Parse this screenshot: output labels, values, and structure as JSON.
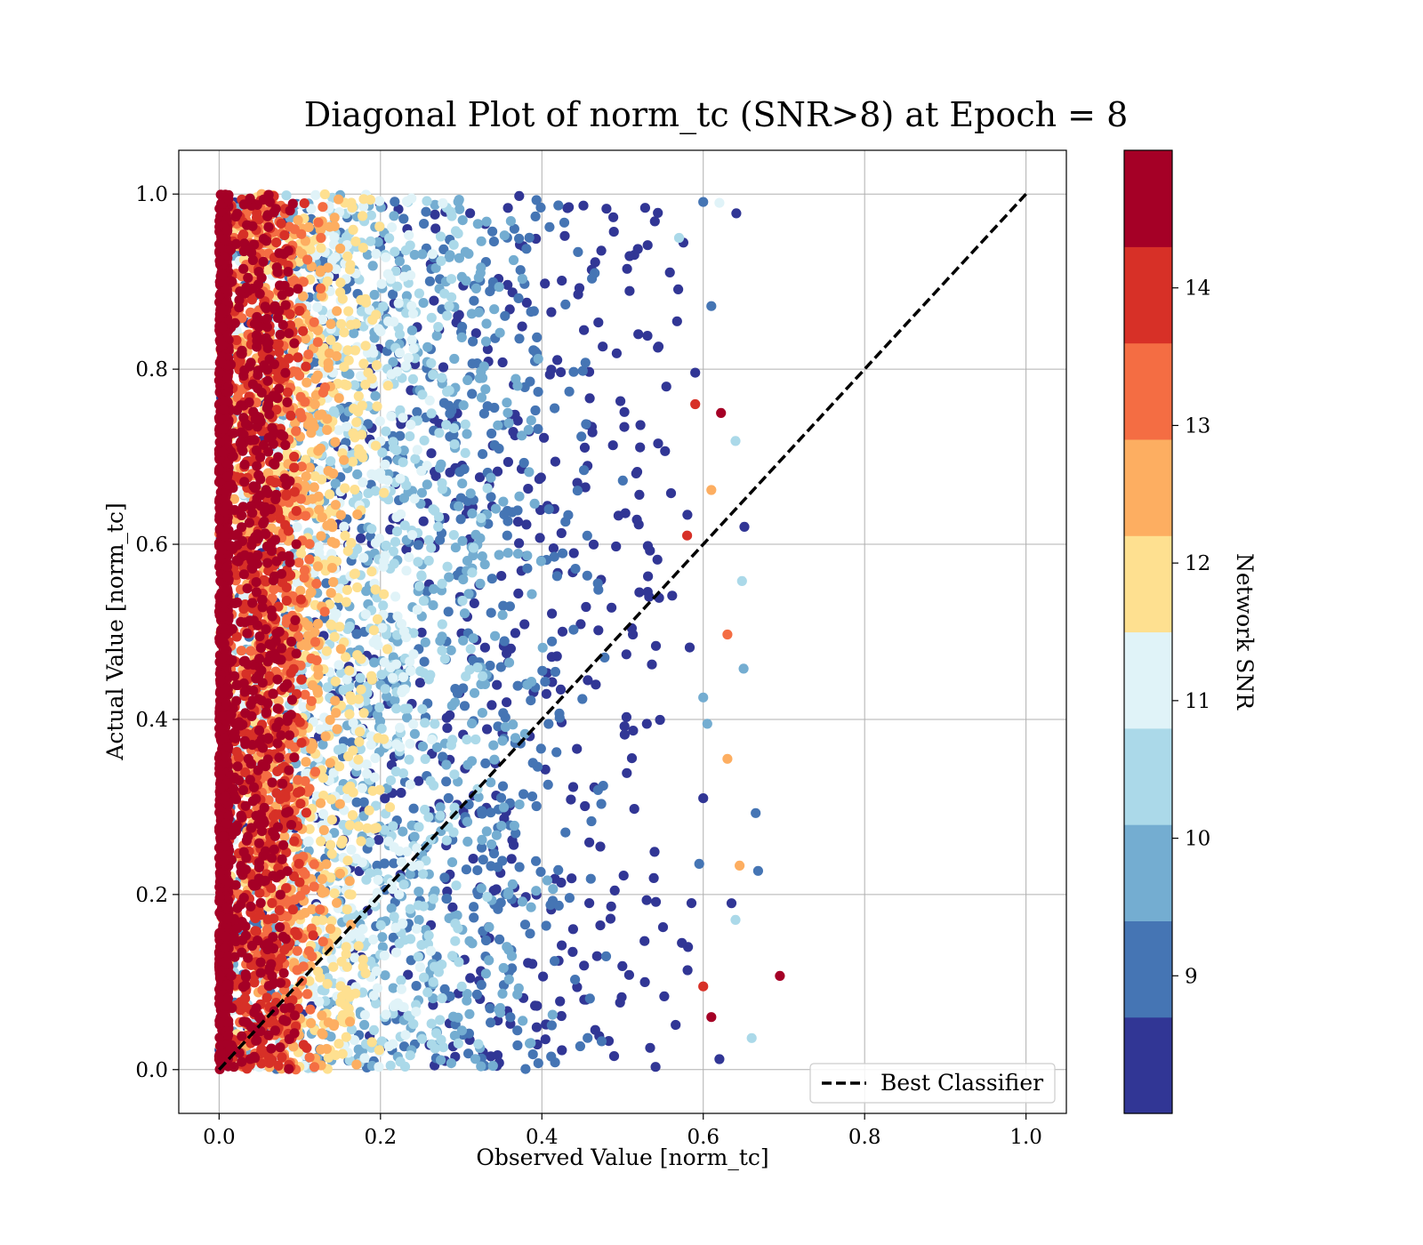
{
  "chart_data": {
    "type": "scatter",
    "title": "Diagonal Plot of norm_tc (SNR>8) at Epoch = 8",
    "xlabel": "Observed Value [norm_tc]",
    "ylabel": "Actual Value [norm_tc]",
    "xlim": [
      -0.05,
      1.05
    ],
    "ylim": [
      -0.05,
      1.05
    ],
    "xticks": [
      0.0,
      0.2,
      0.4,
      0.6,
      0.8,
      1.0
    ],
    "xtick_labels": [
      "0.0",
      "0.2",
      "0.4",
      "0.6",
      "0.8",
      "1.0"
    ],
    "yticks": [
      0.0,
      0.2,
      0.4,
      0.6,
      0.8,
      1.0
    ],
    "ytick_labels": [
      "0.0",
      "0.2",
      "0.4",
      "0.6",
      "0.8",
      "1.0"
    ],
    "grid": true,
    "legend": {
      "position": "lower-right",
      "entries": [
        {
          "label": "Best Classifier",
          "style": "black dashed line"
        }
      ]
    },
    "reference_line": {
      "label": "Best Classifier",
      "x": [
        0.0,
        1.0
      ],
      "y": [
        0.0,
        1.0
      ],
      "color": "#000000",
      "dash": "dashed"
    },
    "colorbar": {
      "label": "Network SNR",
      "range": [
        8,
        15
      ],
      "ticks": [
        9,
        10,
        11,
        12,
        13,
        14
      ],
      "tick_labels": [
        "9",
        "10",
        "11",
        "12",
        "13",
        "14"
      ],
      "colors": [
        "#313695",
        "#4575b4",
        "#74add1",
        "#abd9e9",
        "#e0f3f8",
        "#fee090",
        "#fdae61",
        "#f46d43",
        "#d73027",
        "#a50026"
      ]
    },
    "distribution": {
      "x_range_observed": [
        0.0,
        0.7
      ],
      "y_range_actual": [
        0.0,
        1.0
      ],
      "note_x_max_by_snr": "high-SNR points cluster near x=0; low-SNR points extend to x≈0.55–0.70"
    },
    "points": [
      {
        "x": 0.695,
        "y": 0.107,
        "snr": 14.6
      },
      {
        "x": 0.641,
        "y": 0.978,
        "snr": 8.3
      },
      {
        "x": 0.622,
        "y": 0.75,
        "snr": 14.5
      },
      {
        "x": 0.651,
        "y": 0.62,
        "snr": 8.4
      },
      {
        "x": 0.665,
        "y": 0.293,
        "snr": 9.1
      },
      {
        "x": 0.668,
        "y": 0.227,
        "snr": 9.2
      },
      {
        "x": 0.66,
        "y": 0.036,
        "snr": 10.6
      },
      {
        "x": 0.63,
        "y": 0.497,
        "snr": 13.6
      },
      {
        "x": 0.648,
        "y": 0.558,
        "snr": 10.6
      },
      {
        "x": 0.65,
        "y": 0.458,
        "snr": 9.7
      },
      {
        "x": 0.6,
        "y": 0.991,
        "snr": 9.1
      },
      {
        "x": 0.62,
        "y": 0.99,
        "snr": 11.2
      },
      {
        "x": 0.63,
        "y": 0.355,
        "snr": 12.8
      },
      {
        "x": 0.64,
        "y": 0.171,
        "snr": 10.4
      },
      {
        "x": 0.62,
        "y": 0.012,
        "snr": 8.3
      },
      {
        "x": 0.61,
        "y": 0.872,
        "snr": 9.0
      },
      {
        "x": 0.64,
        "y": 0.718,
        "snr": 10.6
      },
      {
        "x": 0.61,
        "y": 0.662,
        "snr": 12.7
      },
      {
        "x": 0.645,
        "y": 0.233,
        "snr": 12.6
      },
      {
        "x": 0.635,
        "y": 0.19,
        "snr": 8.3
      },
      {
        "x": 0.595,
        "y": 0.235,
        "snr": 9.0
      },
      {
        "x": 0.59,
        "y": 0.796,
        "snr": 8.4
      },
      {
        "x": 0.6,
        "y": 0.31,
        "snr": 8.3
      },
      {
        "x": 0.6,
        "y": 0.425,
        "snr": 9.4
      },
      {
        "x": 0.605,
        "y": 0.395,
        "snr": 10.0
      },
      {
        "x": 0.58,
        "y": 0.61,
        "snr": 14.2
      },
      {
        "x": 0.59,
        "y": 0.76,
        "snr": 14.2
      },
      {
        "x": 0.57,
        "y": 0.95,
        "snr": 10.4
      },
      {
        "x": 0.6,
        "y": 0.095,
        "snr": 14.2
      },
      {
        "x": 0.61,
        "y": 0.06,
        "snr": 14.3
      }
    ]
  }
}
